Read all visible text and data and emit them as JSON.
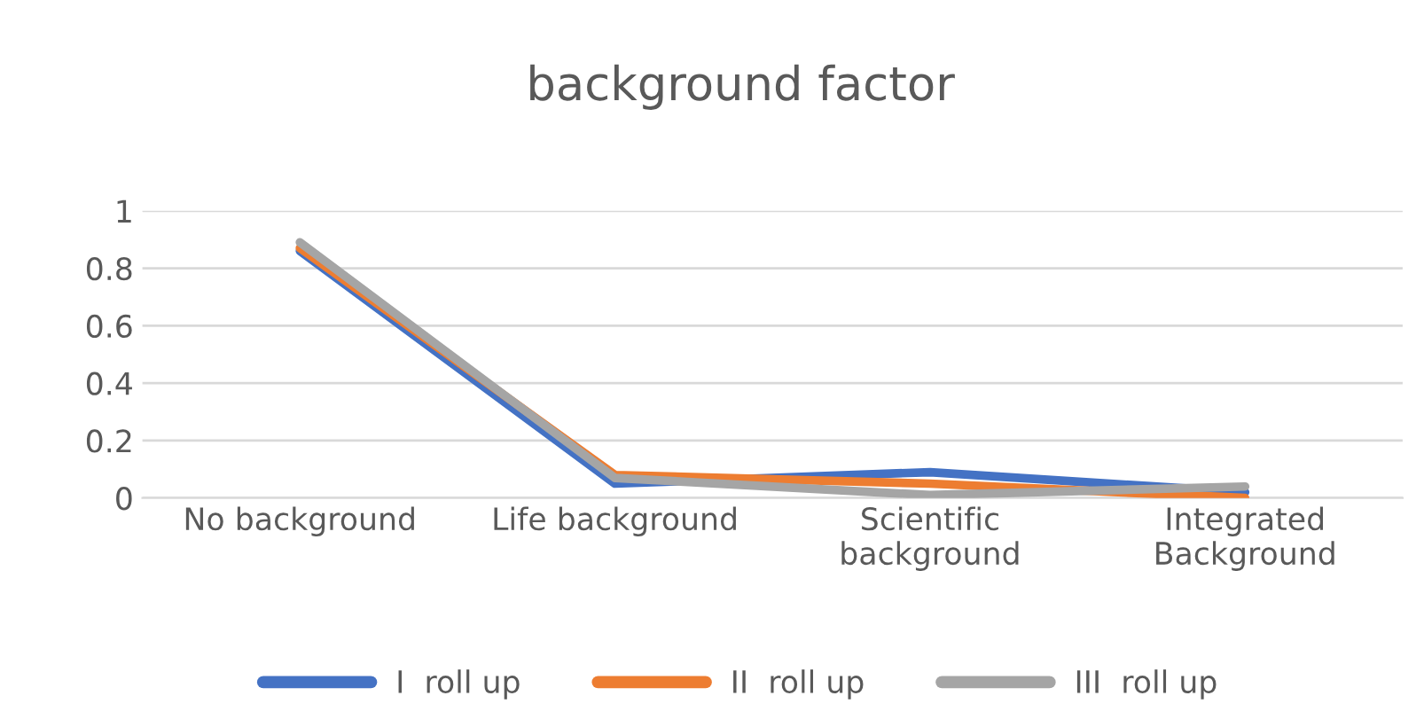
{
  "chart_data": {
    "type": "line",
    "title": "background factor",
    "categories": [
      "No background",
      "Life background",
      "Scientific\nbackground",
      "Integrated\nBackground"
    ],
    "series": [
      {
        "name": "I  roll up",
        "color": "#4472c4",
        "values": [
          0.86,
          0.05,
          0.09,
          0.02
        ]
      },
      {
        "name": "II  roll up",
        "color": "#ed7d31",
        "values": [
          0.87,
          0.08,
          0.05,
          0.0
        ]
      },
      {
        "name": "III  roll up",
        "color": "#a5a5a5",
        "values": [
          0.89,
          0.07,
          0.01,
          0.04
        ]
      }
    ],
    "ylim": [
      0,
      1
    ],
    "yticks": [
      0,
      0.2,
      0.4,
      0.6,
      0.8,
      1
    ],
    "grid": "y",
    "legend": "bottom",
    "marker": "none",
    "line_style": "solid"
  }
}
